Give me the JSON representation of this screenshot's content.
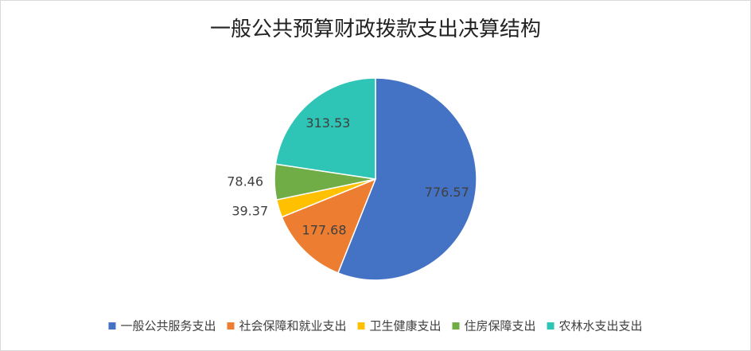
{
  "chart_data": {
    "type": "pie",
    "title": "一般公共预算财政拨款支出决算结构",
    "categories": [
      "一般公共服务支出",
      "社会保障和就业支出",
      "卫生健康支出",
      "住房保障支出",
      "农林水支出支出"
    ],
    "values": [
      776.57,
      177.68,
      39.37,
      78.46,
      313.53
    ],
    "colors": [
      "#4472c4",
      "#ed7d31",
      "#ffc000",
      "#70ad47",
      "#2ec4b6"
    ],
    "legend": "bottom"
  }
}
